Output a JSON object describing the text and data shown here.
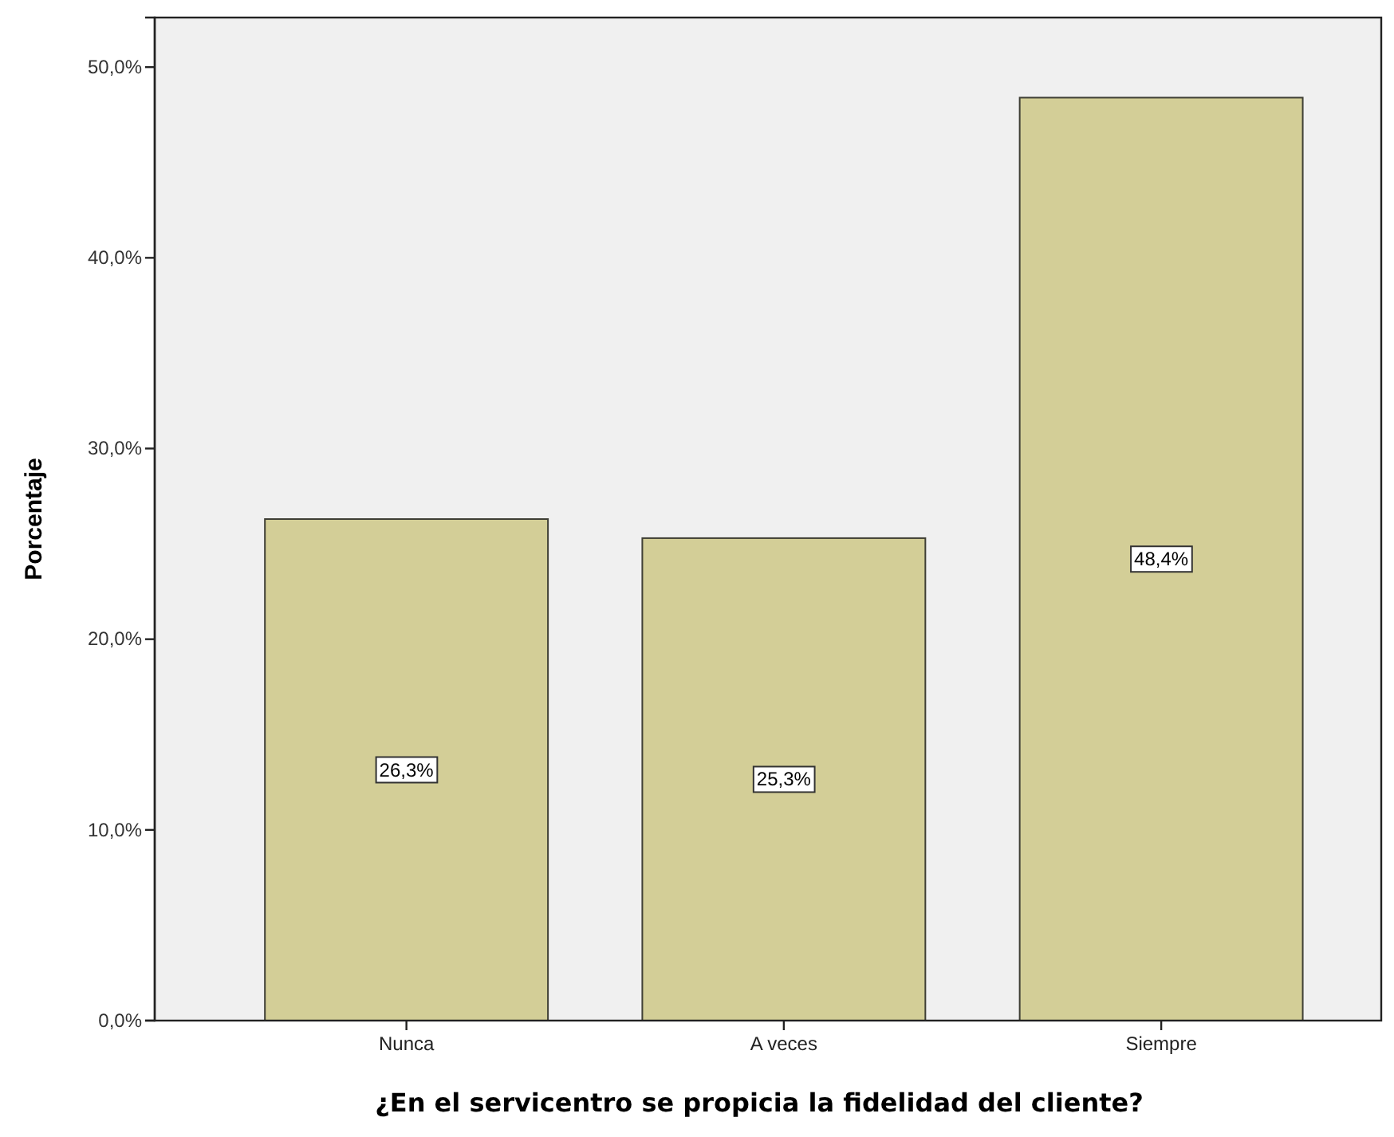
{
  "chart_data": {
    "type": "bar",
    "xlabel": "¿En el servicentro se propicia la fidelidad del cliente?",
    "ylabel": "Porcentaje",
    "categories": [
      "Nunca",
      "A veces",
      "Siempre"
    ],
    "values": [
      26.3,
      25.3,
      48.4
    ],
    "color": "#d3ce97",
    "value_labels": [
      "26,3%",
      "25,3%",
      "48,4%"
    ],
    "ylim": [
      0,
      52.6
    ],
    "yticks": [
      {
        "value": 0,
        "label": "0,0%"
      },
      {
        "value": 10,
        "label": "10,0%"
      },
      {
        "value": 20,
        "label": "20,0%"
      },
      {
        "value": 30,
        "label": "30,0%"
      },
      {
        "value": 40,
        "label": "40,0%"
      },
      {
        "value": 50,
        "label": "50,0%"
      }
    ],
    "grid": false,
    "legend": false
  }
}
